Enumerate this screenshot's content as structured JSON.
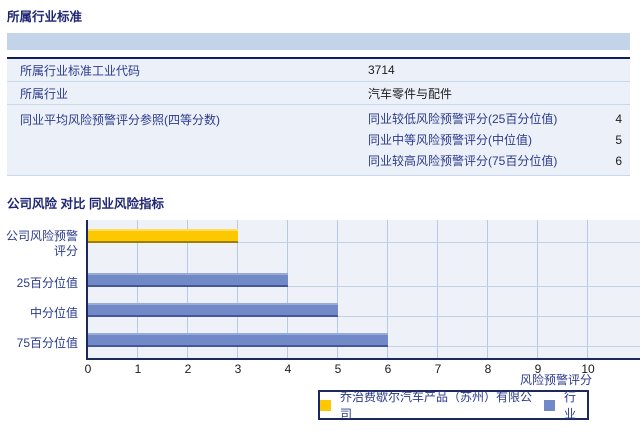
{
  "industry_section": {
    "title": "所属行业标准",
    "rows": [
      {
        "label": "所属行业标准工业代码",
        "value": "3714"
      },
      {
        "label": "所属行业",
        "value": "汽车零件与配件"
      }
    ],
    "quartile_row": {
      "label": "同业平均风险预警评分参照(四等分数)",
      "items": [
        {
          "label": "同业较低风险预警评分(25百分位值)",
          "value": "4"
        },
        {
          "label": "同业中等风险预警评分(中位值)",
          "value": "5"
        },
        {
          "label": "同业较高风险预警评分(75百分位值)",
          "value": "6"
        }
      ]
    }
  },
  "comparison_section": {
    "title": "公司风险 对比 同业风险指标"
  },
  "chart_data": {
    "type": "bar",
    "orientation": "horizontal",
    "categories": [
      "公司风险预警评分",
      "25百分位值",
      "中分位值",
      "75百分位值"
    ],
    "values": [
      3,
      4,
      5,
      6
    ],
    "series_class": [
      "company",
      "industry",
      "industry",
      "industry"
    ],
    "colors": {
      "company": "#fec800",
      "industry": "#7289c8"
    },
    "xticks": [
      0,
      1,
      2,
      3,
      4,
      5,
      6,
      7,
      8,
      9,
      10
    ],
    "xlim": [
      0,
      11
    ],
    "xlabel": "风险预警评分",
    "grid": "vertical",
    "legend_position": "bottom-right",
    "legend": [
      {
        "label": "乔治费歇尔汽车产品（苏州）有限公司",
        "series": "company"
      },
      {
        "label": "行业",
        "series": "industry"
      }
    ]
  }
}
